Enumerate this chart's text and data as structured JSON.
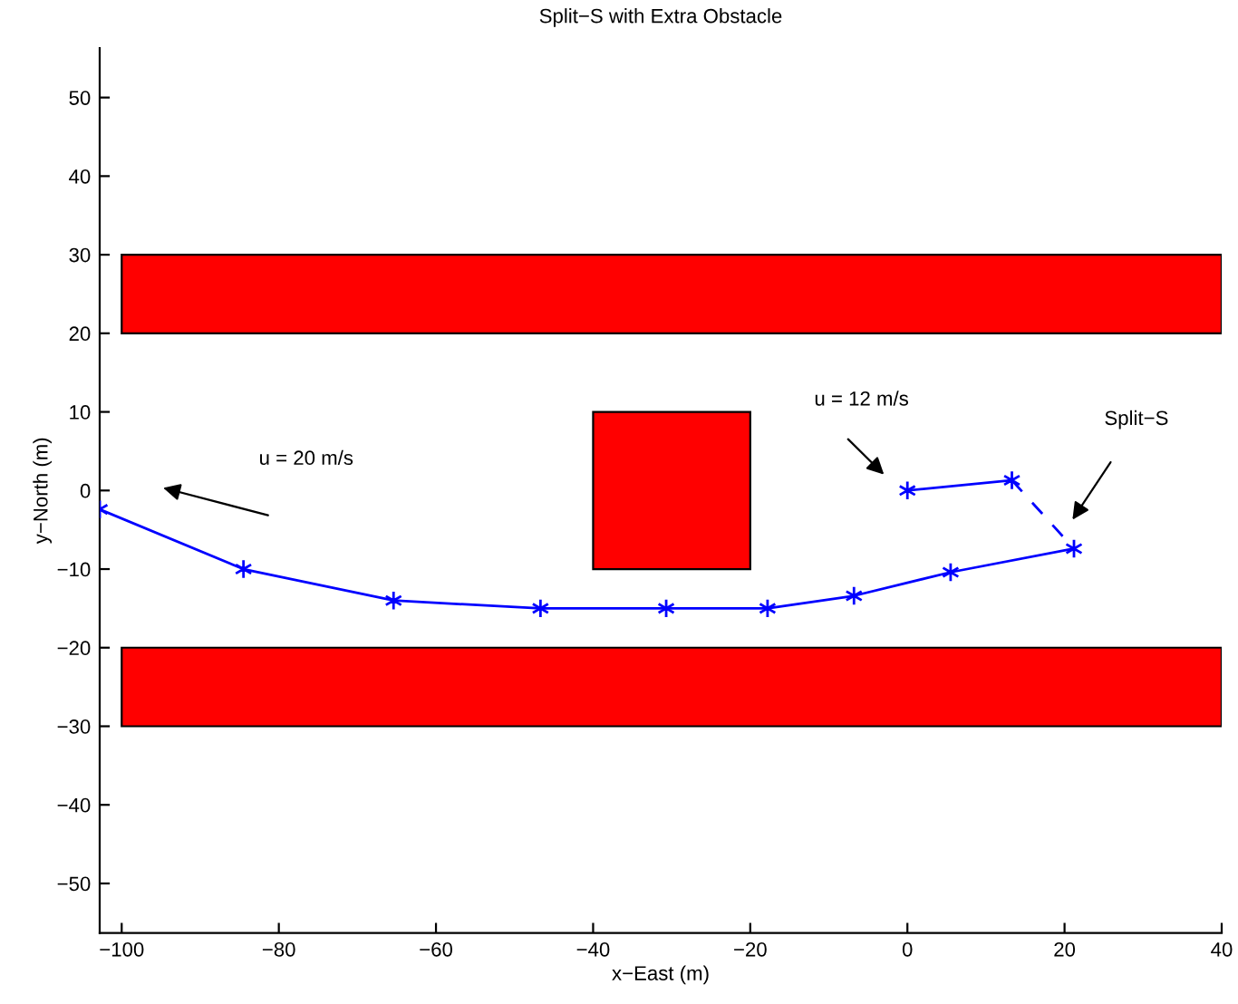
{
  "chart_data": {
    "type": "line",
    "title": "Split−S with Extra Obstacle",
    "xlabel": "x−East (m)",
    "ylabel": "y−North (m)",
    "xlim": [
      -102.8,
      40
    ],
    "ylim": [
      -56.3,
      56.3
    ],
    "xticks": [
      {
        "value": -100,
        "label": "−100"
      },
      {
        "value": -80,
        "label": "−80"
      },
      {
        "value": -60,
        "label": "−60"
      },
      {
        "value": -40,
        "label": "−40"
      },
      {
        "value": -20,
        "label": "−20"
      },
      0,
      20,
      40
    ],
    "yticks": [
      {
        "value": -50,
        "label": "−50"
      },
      {
        "value": -40,
        "label": "−40"
      },
      {
        "value": -30,
        "label": "−30"
      },
      {
        "value": -20,
        "label": "−20"
      },
      {
        "value": -10,
        "label": "−10"
      },
      0,
      10,
      20,
      30,
      40,
      50
    ],
    "grid": false,
    "series": [
      {
        "type": "area",
        "color": "#ff0000",
        "x": [
          -100,
          40,
          40,
          -100
        ],
        "values": [
          20,
          20,
          30,
          30
        ]
      },
      {
        "type": "area",
        "color": "#ff0000",
        "x": [
          -100,
          40,
          40,
          -100
        ],
        "values": [
          -30,
          -30,
          -20,
          -20
        ]
      },
      {
        "type": "area",
        "color": "#ff0000",
        "x": [
          -40,
          -20,
          -20,
          -40
        ],
        "values": [
          -10,
          -10,
          10,
          10
        ]
      },
      {
        "color": "#0000ff",
        "marker": "cross",
        "line_style": "solid",
        "x": [
          -102.8,
          -84.5,
          -65.4,
          -46.7,
          -30.7,
          -17.8,
          -6.8,
          5.5,
          21.2
        ],
        "values": [
          -2.4,
          -10,
          -14,
          -15,
          -15,
          -15,
          -13.4,
          -10.4,
          -7.4
        ]
      },
      {
        "color": "#0000ff",
        "marker": "cross",
        "line_style": "solid",
        "x": [
          0,
          13.3
        ],
        "values": [
          0,
          1.3
        ]
      },
      {
        "color": "#0000ff",
        "marker": "none",
        "line_style": "dashed",
        "x": [
          13.3,
          21.2
        ],
        "values": [
          1.3,
          -7.4
        ]
      }
    ],
    "annotations": [
      "u = 20 m/s",
      "u = 12 m/s",
      "Split−S"
    ]
  }
}
